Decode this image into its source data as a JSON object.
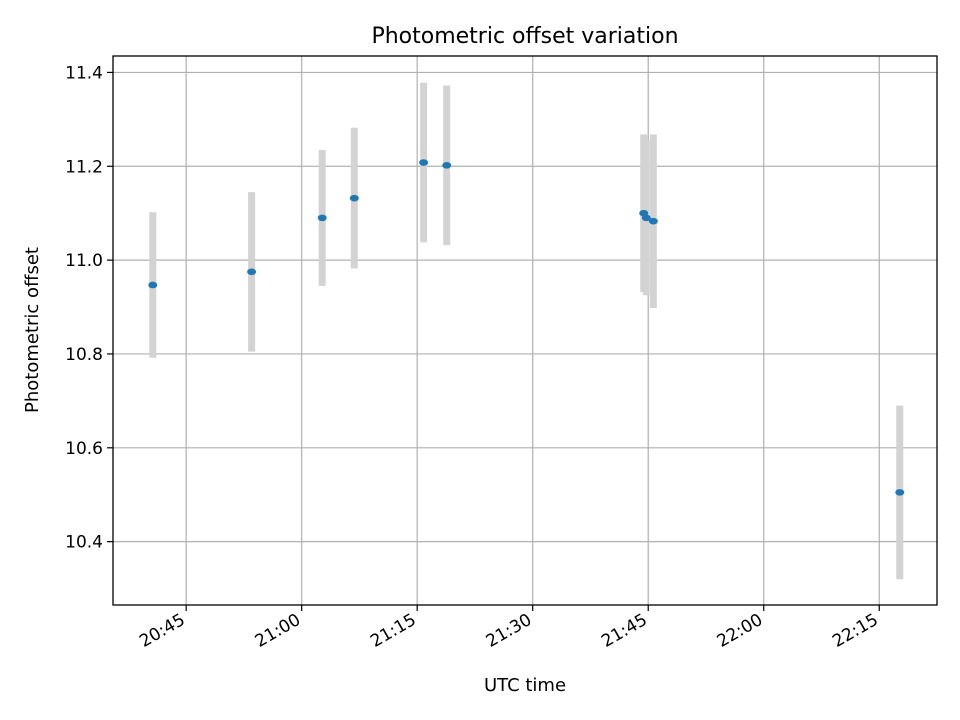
{
  "chart_data": {
    "type": "scatter",
    "title": "Photometric offset variation",
    "xlabel": "UTC time",
    "ylabel": "Photometric offset",
    "xlim": [
      "20:35:30",
      "22:22:30"
    ],
    "ylim": [
      10.265,
      11.435
    ],
    "x_ticks": [
      "20:45",
      "21:00",
      "21:15",
      "21:30",
      "21:45",
      "22:00",
      "22:15"
    ],
    "y_ticks": [
      "10.4",
      "10.6",
      "10.8",
      "11.0",
      "11.2",
      "11.4"
    ],
    "grid": true,
    "colors": {
      "point": "#1f77b4",
      "errorbar": "#d3d3d3"
    },
    "series": [
      {
        "x": [
          "20:40:40",
          "20:53:30",
          "21:02:40",
          "21:06:50",
          "21:15:50",
          "21:18:50",
          "21:44:25",
          "21:44:45",
          "21:45:40",
          "22:17:40"
        ],
        "y": [
          10.947,
          10.975,
          11.09,
          11.132,
          11.208,
          11.202,
          11.1,
          11.09,
          11.083,
          10.505
        ],
        "yerr": [
          0.155,
          0.17,
          0.145,
          0.15,
          0.17,
          0.17,
          0.168,
          0.165,
          0.185,
          0.185
        ]
      }
    ]
  }
}
